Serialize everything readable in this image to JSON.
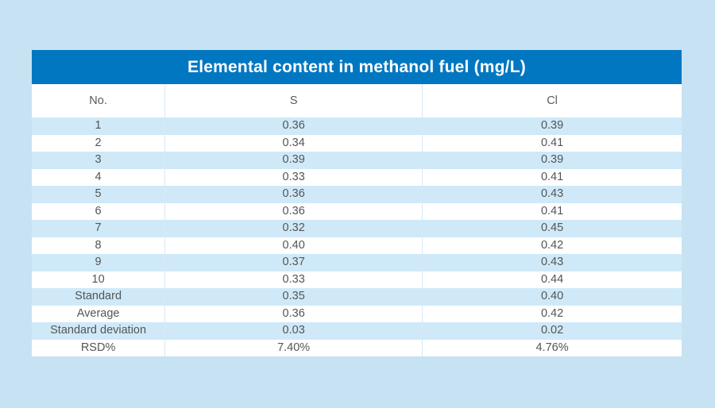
{
  "colors": {
    "page_background": "#c7e2f2",
    "title_bar_background": "#0277c1",
    "title_text": "#ffffff",
    "stripe_row": "#cfe9f8",
    "plain_row": "#ffffff",
    "cell_text": "#555555"
  },
  "chart_data": {
    "type": "table",
    "title": "Elemental content in methanol fuel (mg/L)",
    "columns": [
      "No.",
      "S",
      "Cl"
    ],
    "rows": [
      [
        "1",
        "0.36",
        "0.39"
      ],
      [
        "2",
        "0.34",
        "0.41"
      ],
      [
        "3",
        "0.39",
        "0.39"
      ],
      [
        "4",
        "0.33",
        "0.41"
      ],
      [
        "5",
        "0.36",
        "0.43"
      ],
      [
        "6",
        "0.36",
        "0.41"
      ],
      [
        "7",
        "0.32",
        "0.45"
      ],
      [
        "8",
        "0.40",
        "0.42"
      ],
      [
        "9",
        "0.37",
        "0.43"
      ],
      [
        "10",
        "0.33",
        "0.44"
      ],
      [
        "Standard",
        "0.35",
        "0.40"
      ],
      [
        "Average",
        "0.36",
        "0.42"
      ],
      [
        "Standard deviation",
        "0.03",
        "0.02"
      ],
      [
        "RSD%",
        "7.40%",
        "4.76%"
      ]
    ]
  }
}
